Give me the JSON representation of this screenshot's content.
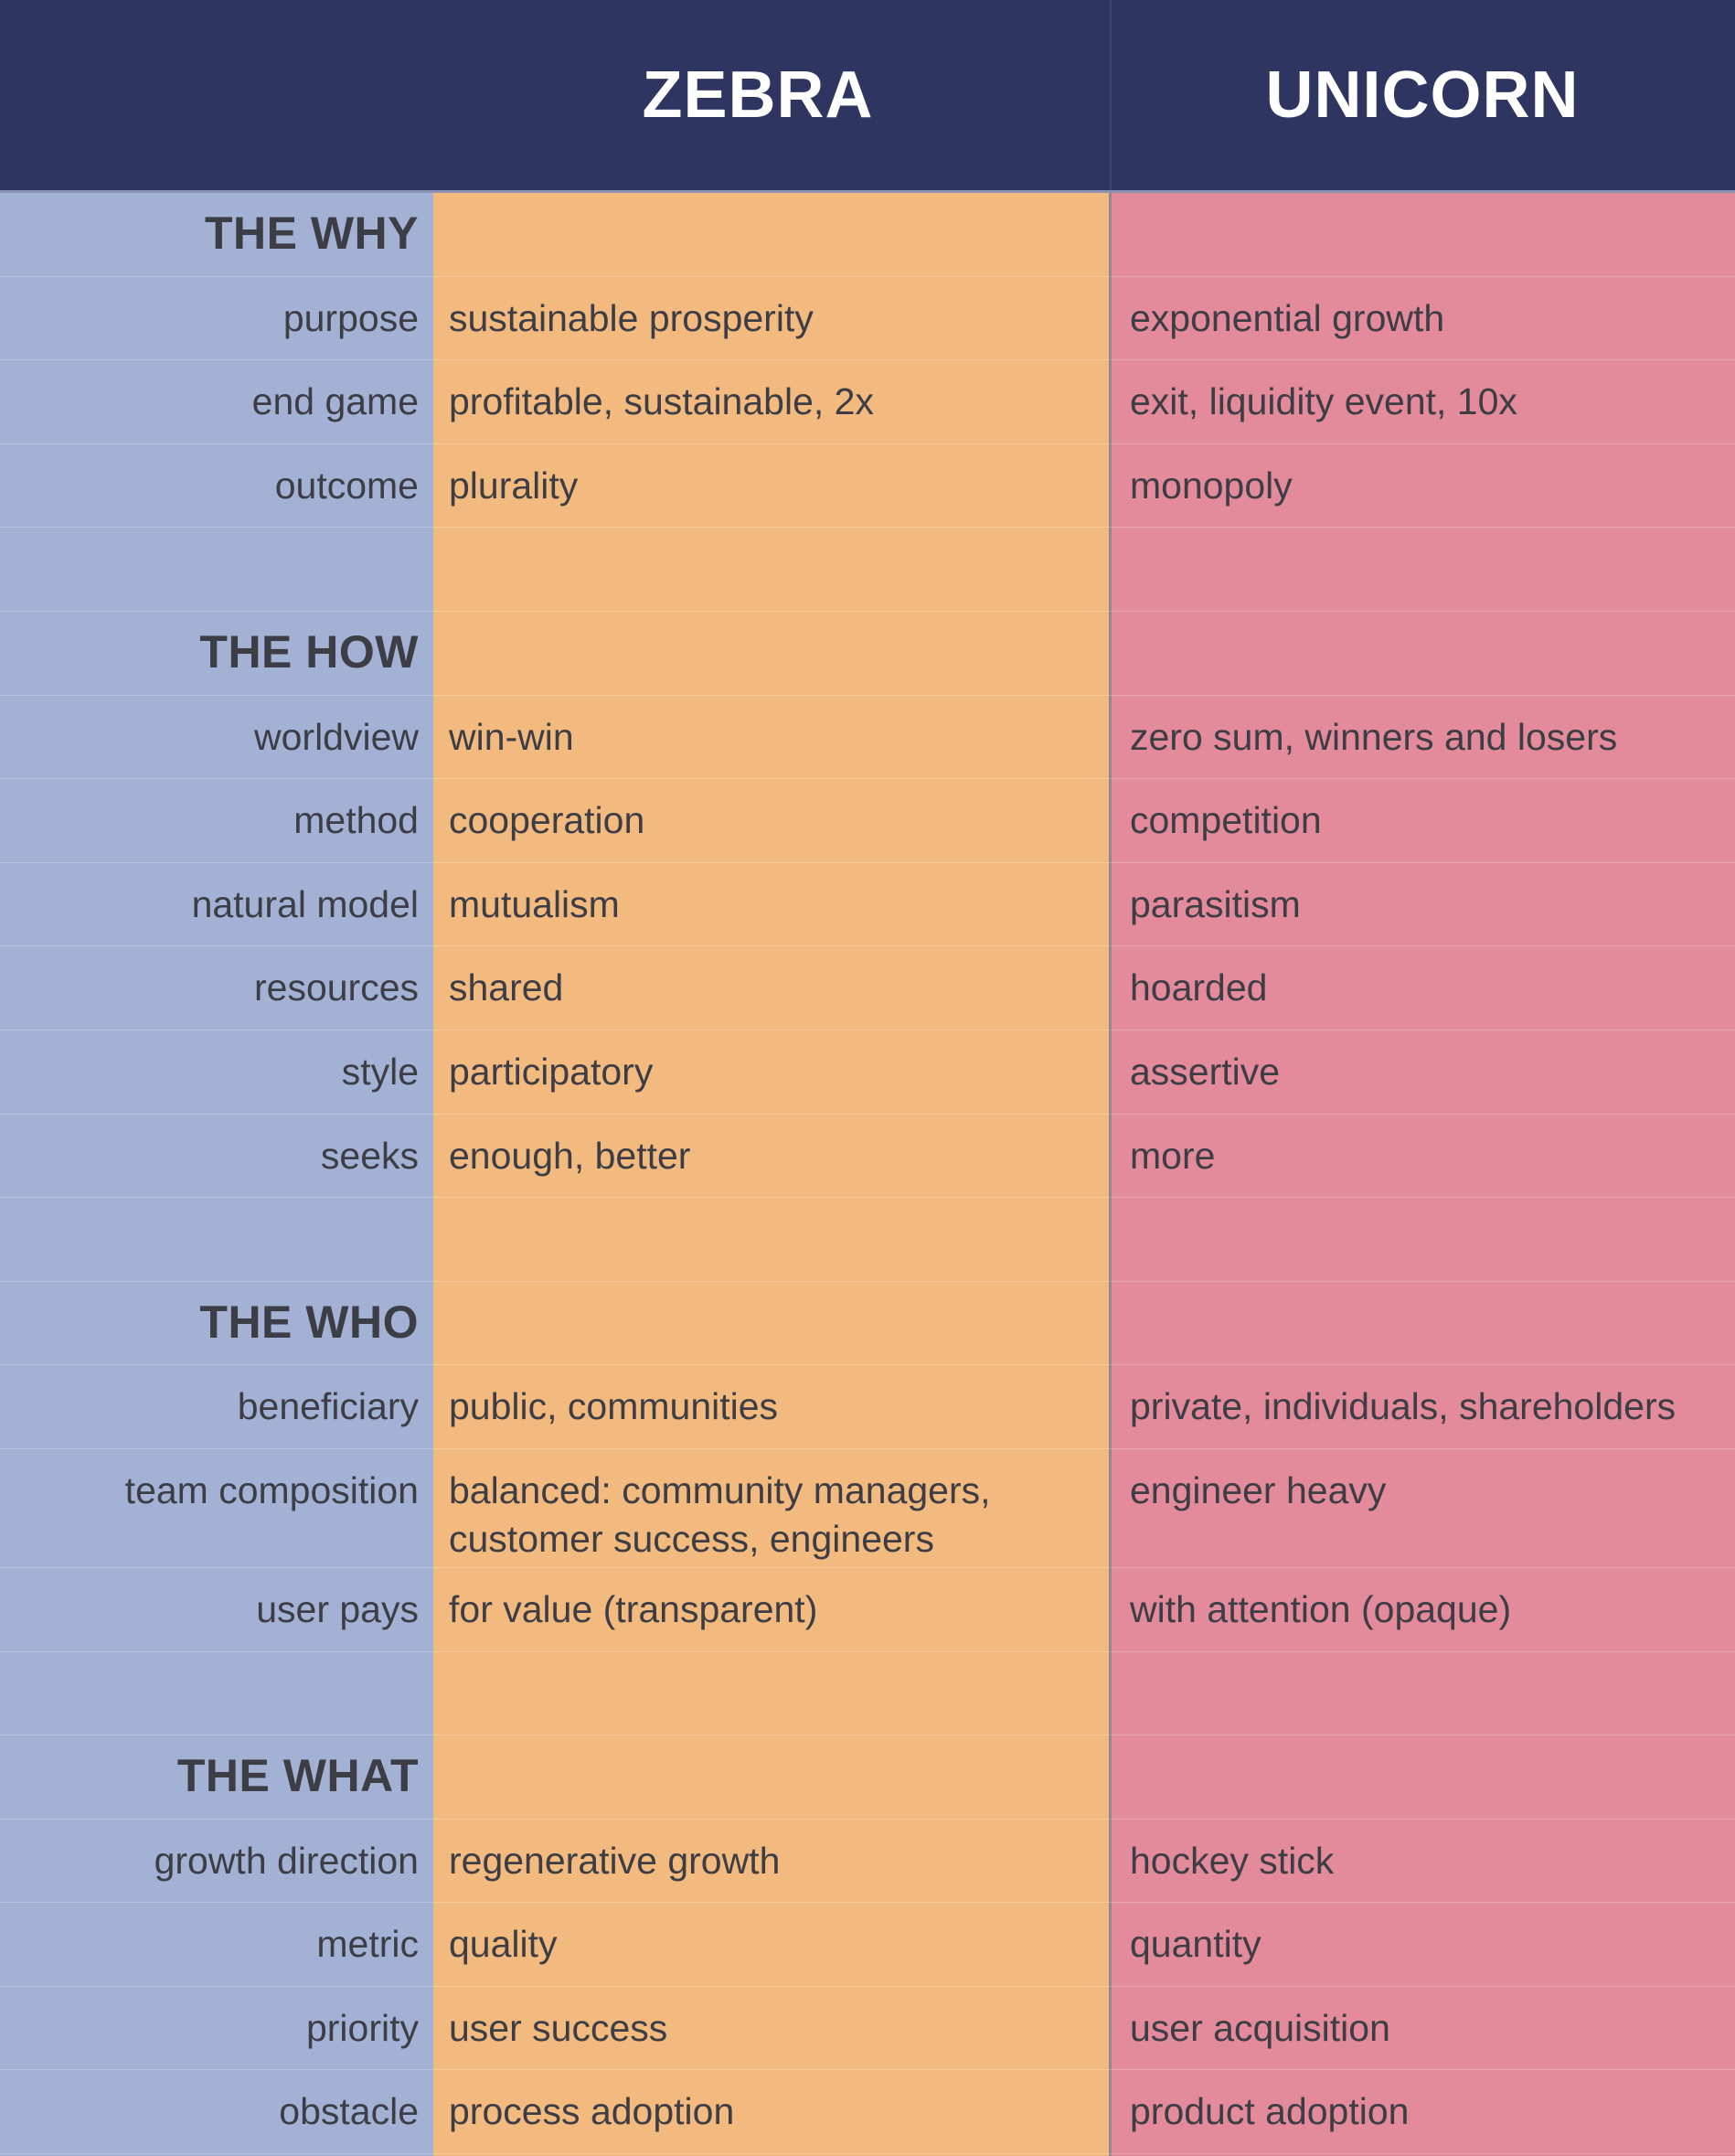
{
  "header": {
    "zebra": "ZEBRA",
    "unicorn": "UNICORN"
  },
  "sections": {
    "why": {
      "title": "THE WHY",
      "rows": [
        {
          "label": "purpose",
          "zebra": "sustainable prosperity",
          "unicorn": "exponential growth"
        },
        {
          "label": "end game",
          "zebra": "profitable, sustainable, 2x",
          "unicorn": "exit, liquidity event, 10x"
        },
        {
          "label": "outcome",
          "zebra": "plurality",
          "unicorn": "monopoly"
        }
      ]
    },
    "how": {
      "title": "THE HOW",
      "rows": [
        {
          "label": "worldview",
          "zebra": "win-win",
          "unicorn": "zero sum, winners and losers"
        },
        {
          "label": "method",
          "zebra": "cooperation",
          "unicorn": "competition"
        },
        {
          "label": "natural model",
          "zebra": "mutualism",
          "unicorn": "parasitism"
        },
        {
          "label": "resources",
          "zebra": "shared",
          "unicorn": "hoarded"
        },
        {
          "label": "style",
          "zebra": "participatory",
          "unicorn": "assertive"
        },
        {
          "label": "seeks",
          "zebra": "enough, better",
          "unicorn": "more"
        }
      ]
    },
    "who": {
      "title": "THE WHO",
      "rows": [
        {
          "label": "beneficiary",
          "zebra": "public, communities",
          "unicorn": "private, individuals, shareholders"
        },
        {
          "label": "team composition",
          "zebra_line1": "balanced: community managers,",
          "zebra_line2": "customer success, engineers",
          "unicorn": "engineer heavy"
        },
        {
          "label": "user pays",
          "zebra": "for value (transparent)",
          "unicorn": "with attention (opaque)"
        }
      ]
    },
    "what": {
      "title": "THE WHAT",
      "rows": [
        {
          "label": "growth direction",
          "zebra": "regenerative growth",
          "unicorn": "hockey stick"
        },
        {
          "label": "metric",
          "zebra": "quality",
          "unicorn": "quantity"
        },
        {
          "label": "priority",
          "zebra": "user success",
          "unicorn": "user acquisition"
        },
        {
          "label": "obstacle",
          "zebra": "process adoption",
          "unicorn": "product adoption"
        }
      ]
    }
  },
  "colors": {
    "header_bg": "#2e3560",
    "label_col": "#a3b2d4",
    "zebra_col": "#f2ba7e",
    "unicorn_col": "#e38a9b",
    "text": "#3d3d45"
  }
}
